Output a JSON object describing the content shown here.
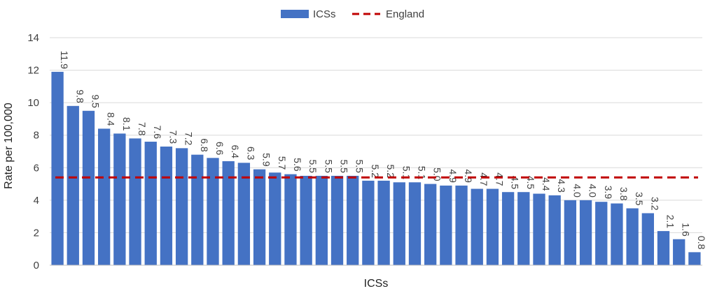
{
  "chart_data": {
    "type": "bar",
    "xlabel": "ICSs",
    "ylabel": "Rate per 100,000",
    "ylim": [
      0,
      14
    ],
    "yticks": [
      0,
      2,
      4,
      6,
      8,
      10,
      12,
      14
    ],
    "grid": true,
    "legend_position": "top-center",
    "series": [
      {
        "name": "ICSs",
        "color": "#4472C4",
        "values": [
          11.9,
          9.8,
          9.5,
          8.4,
          8.1,
          7.8,
          7.6,
          7.3,
          7.2,
          6.8,
          6.6,
          6.4,
          6.3,
          5.9,
          5.7,
          5.6,
          5.5,
          5.5,
          5.5,
          5.5,
          5.2,
          5.2,
          5.1,
          5.1,
          5.0,
          4.9,
          4.9,
          4.7,
          4.7,
          4.5,
          4.5,
          4.4,
          4.3,
          4.0,
          4.0,
          3.9,
          3.8,
          3.5,
          3.2,
          2.1,
          1.6,
          0.8
        ],
        "labels": [
          "11.9",
          "9.8",
          "9.5",
          "8.4",
          "8.1",
          "7.8",
          "7.6",
          "7.3",
          "7.2",
          "6.8",
          "6.6",
          "6.4",
          "6.3",
          "5.9",
          "5.7",
          "5.6",
          "5.5",
          "5.5",
          "5.5",
          "5.5",
          "5.2",
          "5.2",
          "5.1",
          "5.1",
          "5.0",
          "4.9",
          "4.9",
          "4.7",
          "4.7",
          "4.5",
          "4.5",
          "4.4",
          "4.3",
          "4.0",
          "4.0",
          "3.9",
          "3.8",
          "3.5",
          "3.2",
          "2.1",
          "1.6",
          "0.8"
        ]
      },
      {
        "name": "England",
        "color": "#C00000",
        "style": "dashed",
        "value": 5.4
      }
    ]
  }
}
